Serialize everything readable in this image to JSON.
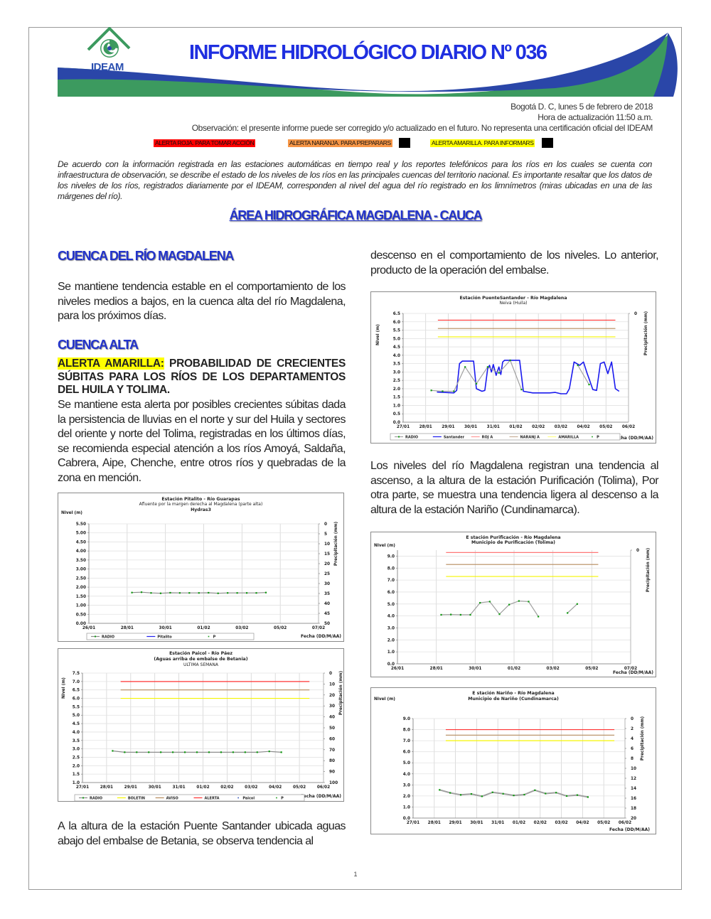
{
  "header": {
    "logo_text": "IDEAM",
    "title": "INFORME HIDROLÓGICO DIARIO Nº 036",
    "colors": {
      "blue": "#2a46a8",
      "green": "#3c9a5f",
      "title": "#1f2fe0"
    }
  },
  "meta": {
    "date": "Bogotá D. C, lunes 5 de febrero de 2018",
    "update_time": "Hora de actualización 11:50 a.m.",
    "observation": "Observación: el presente informe puede ser corregido y/o actualizado en el futuro. No representa una certificación oficial del IDEAM"
  },
  "alerts": [
    {
      "label": "ALERTA ROJA. PARA TOMAR ACCIÓN",
      "color": "#ff0000"
    },
    {
      "label": "ALERTA NARANJA. PARA PREPARARS",
      "color": "#f79646"
    },
    {
      "label": "ALERTA AMARILLA. PARA INFORMARS",
      "color": "#ffff00"
    }
  ],
  "intro": "De acuerdo con la información registrada en las estaciones automáticas en tiempo real y los reportes telefónicos para los ríos en los cuales se cuenta con infraestructura de observación, se describe el estado de los niveles de los ríos en las principales cuencas del territorio nacional. Es importante resaltar que los datos de los niveles de los ríos, registrados diariamente por el IDEAM, corresponden al nivel del agua del río registrado en los limnímetros (miras ubicadas en una de las márgenes del río).",
  "area_title": "ÁREA HIDROGRÁFICA MAGDALENA - CAUCA",
  "left": {
    "h_cuenca": "CUENCA DEL RÍO MAGDALENA",
    "p1": "Se mantiene tendencia estable en el comportamiento de los niveles medios a bajos, en la cuenca alta del río Magdalena, para los próximos días.",
    "h_alta": "CUENCA ALTA",
    "alert_label": "ALERTA AMARILLA:",
    "alert_text": " PROBABILIDAD DE CRECIENTES SÚBITAS PARA LOS RÍOS DE LOS DEPARTAMENTOS DEL HUILA Y TOLIMA.",
    "p2": "Se mantiene esta alerta por posibles crecientes súbitas dada la persistencia de lluvias en el norte y sur del Huila y sectores del oriente y norte del Tolima, registradas en los últimos días, se recomienda especial atención a los ríos Amoyá, Saldaña, Cabrera, Aipe, Chenche, entre otros ríos y quebradas de la zona en mención.",
    "p3": "A la altura de la estación Puente Santander ubicada aguas abajo del embalse de Betania, se observa tendencia al"
  },
  "right": {
    "p1": "descenso en el comportamiento de los niveles. Lo anterior, producto de la operación del embalse.",
    "p2": "Los niveles del río Magdalena registran una tendencia al ascenso, a la altura de la estación Purificación (Tolima), Por otra parte, se muestra una tendencia ligera al descenso a la altura de la estación Nariño (Cundinamarca)."
  },
  "page_number": "1",
  "chart_data": [
    {
      "type": "line",
      "title": [
        "Estación Pitalito  - Río Guarapas",
        "Afluente por la margen derecha al Magdalena (parte alta)",
        "Hydras3"
      ],
      "title_bold": [
        true,
        false,
        true
      ],
      "ylabel": "Nivel (m)",
      "y2label": "Precipitación (mm)",
      "xlabel": "Fecha (DD/M/AA)",
      "ylim": [
        0,
        5.5
      ],
      "y2lim": [
        0,
        50
      ],
      "y2_inverted": true,
      "y_ticks": [
        "5.50",
        "5.00",
        "4.50",
        "4.00",
        "3.50",
        "3.00",
        "2.50",
        "2.00",
        "1.50",
        "1.00",
        "0.50",
        "0.00"
      ],
      "y2_ticks": [
        "0",
        "5",
        "10",
        "15",
        "20",
        "25",
        "30",
        "35",
        "40",
        "45",
        "50"
      ],
      "xlim": [
        "2018-01-26T00:00",
        "2018-02-07T00:00"
      ],
      "x_ticks": [
        "26/01",
        "28/01",
        "30/01",
        "01/02",
        "03/02",
        "05/02",
        "07/02"
      ],
      "grid": true,
      "thresholds": [],
      "series": [
        {
          "name": "RADIO",
          "color": "#8c8c8c",
          "marker": "#119911",
          "start": "2018-01-28T06:00",
          "step_hours": 12,
          "values": [
            1.7,
            1.72,
            1.68,
            1.66,
            1.69,
            1.68,
            1.68,
            1.68,
            1.69,
            1.66,
            1.68,
            1.68,
            1.68,
            1.68,
            1.7
          ]
        }
      ],
      "legend": [
        {
          "name": "RADIO",
          "color": "#8c8c8c",
          "kind": "line-marker"
        },
        {
          "name": "Pitalito",
          "color": "#2222ee",
          "kind": "line"
        },
        {
          "name": "P",
          "color": "#119911",
          "kind": "dot"
        }
      ]
    },
    {
      "type": "line",
      "title": [
        "Estación Paicol  - Río Páez",
        "(Aguas arriba de embalse de Betania)",
        "ULTIMA SEMANA"
      ],
      "title_bold": [
        true,
        true,
        false
      ],
      "ylabel": "Nivel (m)",
      "y2label": "Precipitación (mm)",
      "xlabel": "Fecha (DD/M/AA)",
      "ylim": [
        1.0,
        7.5
      ],
      "y2lim": [
        0,
        100
      ],
      "y2_inverted": true,
      "y_ticks": [
        "7.5",
        "7.0",
        "6.5",
        "6.0",
        "5.5",
        "5.0",
        "4.5",
        "4.0",
        "3.5",
        "3.0",
        "2.5",
        "2.0",
        "1.5",
        "1.0"
      ],
      "y2_ticks": [
        "0",
        "10",
        "20",
        "30",
        "40",
        "50",
        "60",
        "70",
        "80",
        "90",
        "100"
      ],
      "xlim": [
        "2018-01-27T00:00",
        "2018-02-06T00:00"
      ],
      "x_ticks": [
        "27/01",
        "28/01",
        "29/01",
        "30/01",
        "31/01",
        "01/02",
        "02/02",
        "03/02",
        "04/02",
        "05/02",
        "06/02"
      ],
      "grid": true,
      "thresholds": [
        {
          "name": "ALERTA",
          "value": 7.0,
          "color": "#ff3333",
          "from": "2018-01-28T14:00",
          "to": "2018-02-05T10:00"
        },
        {
          "name": "AVISO",
          "value": 6.5,
          "color": "#b58a5c",
          "from": "2018-01-28T14:00",
          "to": "2018-02-05T10:00"
        },
        {
          "name": "BOLETIN",
          "value": 6.0,
          "color": "#f5f500",
          "from": "2018-01-28T14:00",
          "to": "2018-02-05T10:00"
        }
      ],
      "series": [
        {
          "name": "RADIO",
          "color": "#8c8c8c",
          "marker": "#119911",
          "start": "2018-01-28T06:00",
          "step_hours": 12,
          "values": [
            2.88,
            2.8,
            2.8,
            2.8,
            2.8,
            2.8,
            2.8,
            2.8,
            2.8,
            2.8,
            2.8,
            2.8,
            2.8,
            2.85,
            2.8
          ]
        }
      ],
      "legend": [
        {
          "name": "RADIO",
          "color": "#8c8c8c",
          "kind": "line-marker"
        },
        {
          "name": "BOLETIN",
          "color": "#f5f500",
          "kind": "line"
        },
        {
          "name": "AVISO",
          "color": "#b58a5c",
          "kind": "line"
        },
        {
          "name": "ALERTA",
          "color": "#ff3333",
          "kind": "line"
        },
        {
          "name": "Paicol",
          "color": "#3355bb",
          "kind": "dot"
        },
        {
          "name": "P",
          "color": "#119911",
          "kind": "dot"
        }
      ]
    },
    {
      "type": "line",
      "title": [
        "Estación PuenteSantander - Río Magdalena",
        "Neiva (Huila)"
      ],
      "title_bold": [
        true,
        false
      ],
      "ylabel": "Nivel (m)",
      "y2label": "Precipitación (mm)",
      "xlabel": "Fecha (DD/M/AA)",
      "ylim": [
        0,
        6.5
      ],
      "y_ticks": [
        "6.5",
        "6.0",
        "5.5",
        "5.0",
        "4.5",
        "4.0",
        "3.5",
        "3.0",
        "2.5",
        "2.0",
        "1.5",
        "1.0",
        "0.5",
        "0.0"
      ],
      "y2_ticks": [
        "0"
      ],
      "xlim": [
        "2018-01-27T00:00",
        "2018-02-06T00:00"
      ],
      "x_ticks": [
        "27/01",
        "28/01",
        "29/01",
        "30/01",
        "31/01",
        "01/02",
        "02/02",
        "03/02",
        "04/02",
        "05/02",
        "06/02"
      ],
      "grid": true,
      "thresholds": [
        {
          "name": "ROJA",
          "value": 6.1,
          "color": "#ff3333",
          "from": "2018-01-28T13:00",
          "to": "2018-02-05T10:00"
        },
        {
          "name": "NARANJA",
          "value": 5.6,
          "color": "#b58a5c",
          "from": "2018-01-28T13:00",
          "to": "2018-02-05T10:00"
        },
        {
          "name": "AMARILLA",
          "value": 5.1,
          "color": "#f5f500",
          "from": "2018-01-28T13:00",
          "to": "2018-02-05T10:00"
        }
      ],
      "series": [
        {
          "name": "Santander",
          "color": "#1a1aee",
          "width": 1.6,
          "points": [
            [
              "2018-01-28T12:00",
              1.8
            ],
            [
              "2018-01-29T06:00",
              1.75
            ],
            [
              "2018-01-29T09:00",
              1.9
            ],
            [
              "2018-01-29T12:00",
              3.5
            ],
            [
              "2018-01-29T15:00",
              3.65
            ],
            [
              "2018-01-30T03:00",
              3.65
            ],
            [
              "2018-01-30T06:00",
              2.0
            ],
            [
              "2018-01-30T12:00",
              1.85
            ],
            [
              "2018-01-30T15:00",
              1.9
            ],
            [
              "2018-01-30T18:00",
              3.2
            ],
            [
              "2018-01-30T20:00",
              3.4
            ],
            [
              "2018-01-30T22:00",
              3.0
            ],
            [
              "2018-01-31T00:00",
              3.45
            ],
            [
              "2018-01-31T03:00",
              2.8
            ],
            [
              "2018-01-31T06:00",
              3.3
            ],
            [
              "2018-01-31T08:00",
              2.85
            ],
            [
              "2018-01-31T10:00",
              3.6
            ],
            [
              "2018-01-31T12:00",
              3.7
            ],
            [
              "2018-02-01T04:00",
              3.7
            ],
            [
              "2018-02-01T08:00",
              1.85
            ],
            [
              "2018-02-01T18:00",
              1.75
            ],
            [
              "2018-02-02T12:00",
              1.75
            ],
            [
              "2018-02-02T18:00",
              1.78
            ],
            [
              "2018-02-03T00:00",
              1.7
            ],
            [
              "2018-02-03T06:00",
              1.7
            ],
            [
              "2018-02-03T09:00",
              2.0
            ],
            [
              "2018-02-03T14:00",
              3.6
            ],
            [
              "2018-02-03T20:00",
              3.4
            ],
            [
              "2018-02-04T00:00",
              3.6
            ],
            [
              "2018-02-04T04:00",
              2.9
            ],
            [
              "2018-02-04T06:00",
              2.6
            ],
            [
              "2018-02-04T10:00",
              1.95
            ],
            [
              "2018-02-04T14:00",
              1.9
            ],
            [
              "2018-02-04T18:00",
              3.5
            ],
            [
              "2018-02-04T22:00",
              3.6
            ],
            [
              "2018-02-05T02:00",
              2.9
            ],
            [
              "2018-02-05T06:00",
              3.6
            ],
            [
              "2018-02-05T10:00",
              2.0
            ],
            [
              "2018-02-05T14:00",
              1.85
            ]
          ]
        },
        {
          "name": "RADIO",
          "color": "#a0a0a0",
          "marker": "#119911",
          "points": [
            [
              "2018-01-28T06:00",
              1.9
            ],
            [
              "2018-01-28T18:00",
              1.85
            ],
            [
              "2018-01-29T06:00",
              1.85
            ],
            [
              "2018-01-29T18:00",
              3.3
            ],
            [
              "2018-01-30T06:00",
              2.3
            ],
            [
              "2018-01-30T18:00",
              3.3
            ],
            [
              "2018-01-31T06:00",
              2.95
            ],
            [
              "2018-01-31T18:00",
              3.7
            ],
            [
              "2018-02-01T06:00",
              1.95
            ],
            [
              "2018-02-03T18:00",
              3.4
            ],
            [
              "2018-02-04T06:00",
              2.25
            ]
          ],
          "break_after": [
            8
          ]
        }
      ],
      "legend": [
        {
          "name": "RADIO",
          "color": "#a0a0a0",
          "kind": "line-marker"
        },
        {
          "name": "Santander",
          "color": "#1a1aee",
          "kind": "line"
        },
        {
          "name": "ROJ A",
          "color": "#ff9999",
          "kind": "line"
        },
        {
          "name": "NARANJ A",
          "color": "#c8b09a",
          "kind": "line"
        },
        {
          "name": "AMARILLA",
          "color": "#ffff88",
          "kind": "line"
        },
        {
          "name": "P",
          "color": "#119911",
          "kind": "dot"
        }
      ]
    },
    {
      "type": "line",
      "title": [
        "E stación Purificación - Río Magdalena",
        "Municipio de Purificación (Tolima)"
      ],
      "title_bold": [
        true,
        true
      ],
      "ylabel": "Nivel (m)",
      "y2label": "Precipitación (mm)",
      "xlabel": "Fecha (DD/M/AA)",
      "ylim": [
        0,
        9.5
      ],
      "y_ticks": [
        "9.0",
        "8.0",
        "7.0",
        "6.0",
        "5.0",
        "4.0",
        "3.0",
        "2.0",
        "1.0",
        "0.0"
      ],
      "y2_ticks": [
        "0"
      ],
      "xlim": [
        "2018-01-26T00:00",
        "2018-02-07T00:00"
      ],
      "x_ticks": [
        "26/01",
        "28/01",
        "30/01",
        "01/02",
        "03/02",
        "05/02",
        "07/02"
      ],
      "grid": true,
      "thresholds": [
        {
          "name": "ROJA",
          "value": 9.3,
          "color": "#ff7777",
          "from": "2018-01-28T12:00",
          "to": "2018-02-05T08:00"
        },
        {
          "name": "NARANJA",
          "value": 8.3,
          "color": "#b58a5c",
          "from": "2018-01-28T12:00",
          "to": "2018-02-05T08:00"
        },
        {
          "name": "AMARILLA",
          "value": 7.3,
          "color": "#f5f500",
          "from": "2018-01-28T12:00",
          "to": "2018-02-05T08:00"
        }
      ],
      "series": [
        {
          "name": "RADIO",
          "color": "#a0a0a0",
          "marker": "#119911",
          "start": "2018-01-28T06:00",
          "step_hours": 12,
          "values": [
            4.1,
            4.12,
            4.1,
            4.1,
            5.1,
            5.2,
            4.15,
            4.95,
            5.25,
            5.2,
            3.95,
            null,
            null,
            4.25,
            5.0
          ]
        }
      ],
      "legend": []
    },
    {
      "type": "line",
      "title": [
        "E stación Nariño  - Río Magdalena",
        "Municipio de Nariño (Cundinamarca)"
      ],
      "title_bold": [
        true,
        true
      ],
      "ylabel": "Nivel (m)",
      "y2label": "Precipitación (mm)",
      "xlabel": "Fecha (DD/M/AA)",
      "ylim": [
        0,
        9.0
      ],
      "y2lim": [
        0,
        20
      ],
      "y2_inverted": true,
      "y_ticks": [
        "9.0",
        "8.0",
        "7.0",
        "6.0",
        "5.0",
        "4.0",
        "3.0",
        "2.0",
        "1.0",
        "0.0"
      ],
      "y2_ticks": [
        "0",
        "2",
        "4",
        "6",
        "8",
        "10",
        "12",
        "14",
        "16",
        "18",
        "20"
      ],
      "xlim": [
        "2018-01-27T00:00",
        "2018-02-06T00:00"
      ],
      "x_ticks": [
        "27/01",
        "28/01",
        "29/01",
        "30/01",
        "31/01",
        "01/02",
        "02/02",
        "03/02",
        "04/02",
        "05/02",
        "06/02"
      ],
      "grid": true,
      "thresholds": [
        {
          "name": "ROJA",
          "value": 8.0,
          "color": "#ff3333",
          "from": "2018-01-28T13:00",
          "to": "2018-02-05T12:00"
        },
        {
          "name": "NARANJA",
          "value": 7.5,
          "color": "#b58a5c",
          "from": "2018-01-28T13:00",
          "to": "2018-02-05T12:00"
        },
        {
          "name": "AMARILLA",
          "value": 7.0,
          "color": "#f5f500",
          "from": "2018-01-28T13:00",
          "to": "2018-02-05T12:00"
        }
      ],
      "series": [
        {
          "name": "RADIO",
          "color": "#a0a0a0",
          "marker": "#119911",
          "width": 2,
          "start": "2018-01-28T06:00",
          "step_hours": 12,
          "values": [
            2.55,
            2.28,
            2.1,
            2.18,
            1.97,
            2.33,
            2.2,
            2.05,
            2.12,
            2.52,
            2.22,
            2.3,
            2.0,
            2.08,
            1.9
          ]
        }
      ],
      "legend": []
    }
  ]
}
